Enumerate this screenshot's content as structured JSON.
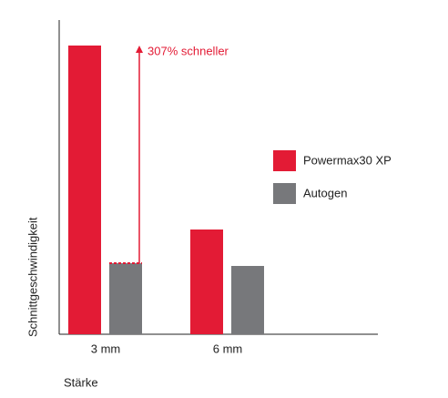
{
  "chart_data": {
    "type": "bar",
    "categories": [
      "3 mm",
      "6 mm"
    ],
    "series": [
      {
        "name": "Powermax30 XP",
        "color": "#e31b35",
        "values": [
          317,
          115
        ]
      },
      {
        "name": "Autogen",
        "color": "#77787b",
        "values": [
          78,
          75
        ]
      }
    ],
    "ylim": [
      0,
      345
    ],
    "x_label": "Stärke",
    "y_label": "Schnittgeschwindigkeit",
    "annotation": "307% schneller"
  }
}
